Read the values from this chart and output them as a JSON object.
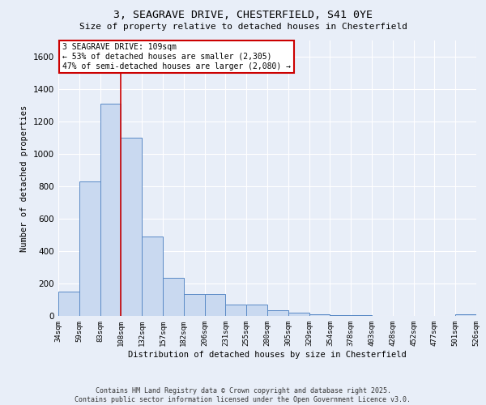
{
  "title_line1": "3, SEAGRAVE DRIVE, CHESTERFIELD, S41 0YE",
  "title_line2": "Size of property relative to detached houses in Chesterfield",
  "xlabel": "Distribution of detached houses by size in Chesterfield",
  "ylabel": "Number of detached properties",
  "bar_values": [
    150,
    830,
    1310,
    1100,
    490,
    235,
    135,
    135,
    70,
    70,
    35,
    20,
    10,
    5,
    5,
    2,
    2,
    2,
    2,
    12
  ],
  "categories": [
    "34sqm",
    "59sqm",
    "83sqm",
    "108sqm",
    "132sqm",
    "157sqm",
    "182sqm",
    "206sqm",
    "231sqm",
    "255sqm",
    "280sqm",
    "305sqm",
    "329sqm",
    "354sqm",
    "378sqm",
    "403sqm",
    "428sqm",
    "452sqm",
    "477sqm",
    "501sqm",
    "526sqm"
  ],
  "bar_color": "#c9d9f0",
  "bar_edge_color": "#5a8ac6",
  "background_color": "#e8eef8",
  "grid_color": "#ffffff",
  "red_line_x": 3.0,
  "annotation_text": "3 SEAGRAVE DRIVE: 109sqm\n← 53% of detached houses are smaller (2,305)\n47% of semi-detached houses are larger (2,080) →",
  "annotation_box_color": "#ffffff",
  "annotation_box_edge": "#cc0000",
  "red_line_color": "#cc0000",
  "ylim": [
    0,
    1700
  ],
  "yticks": [
    0,
    200,
    400,
    600,
    800,
    1000,
    1200,
    1400,
    1600
  ],
  "footer": "Contains HM Land Registry data © Crown copyright and database right 2025.\nContains public sector information licensed under the Open Government Licence v3.0."
}
